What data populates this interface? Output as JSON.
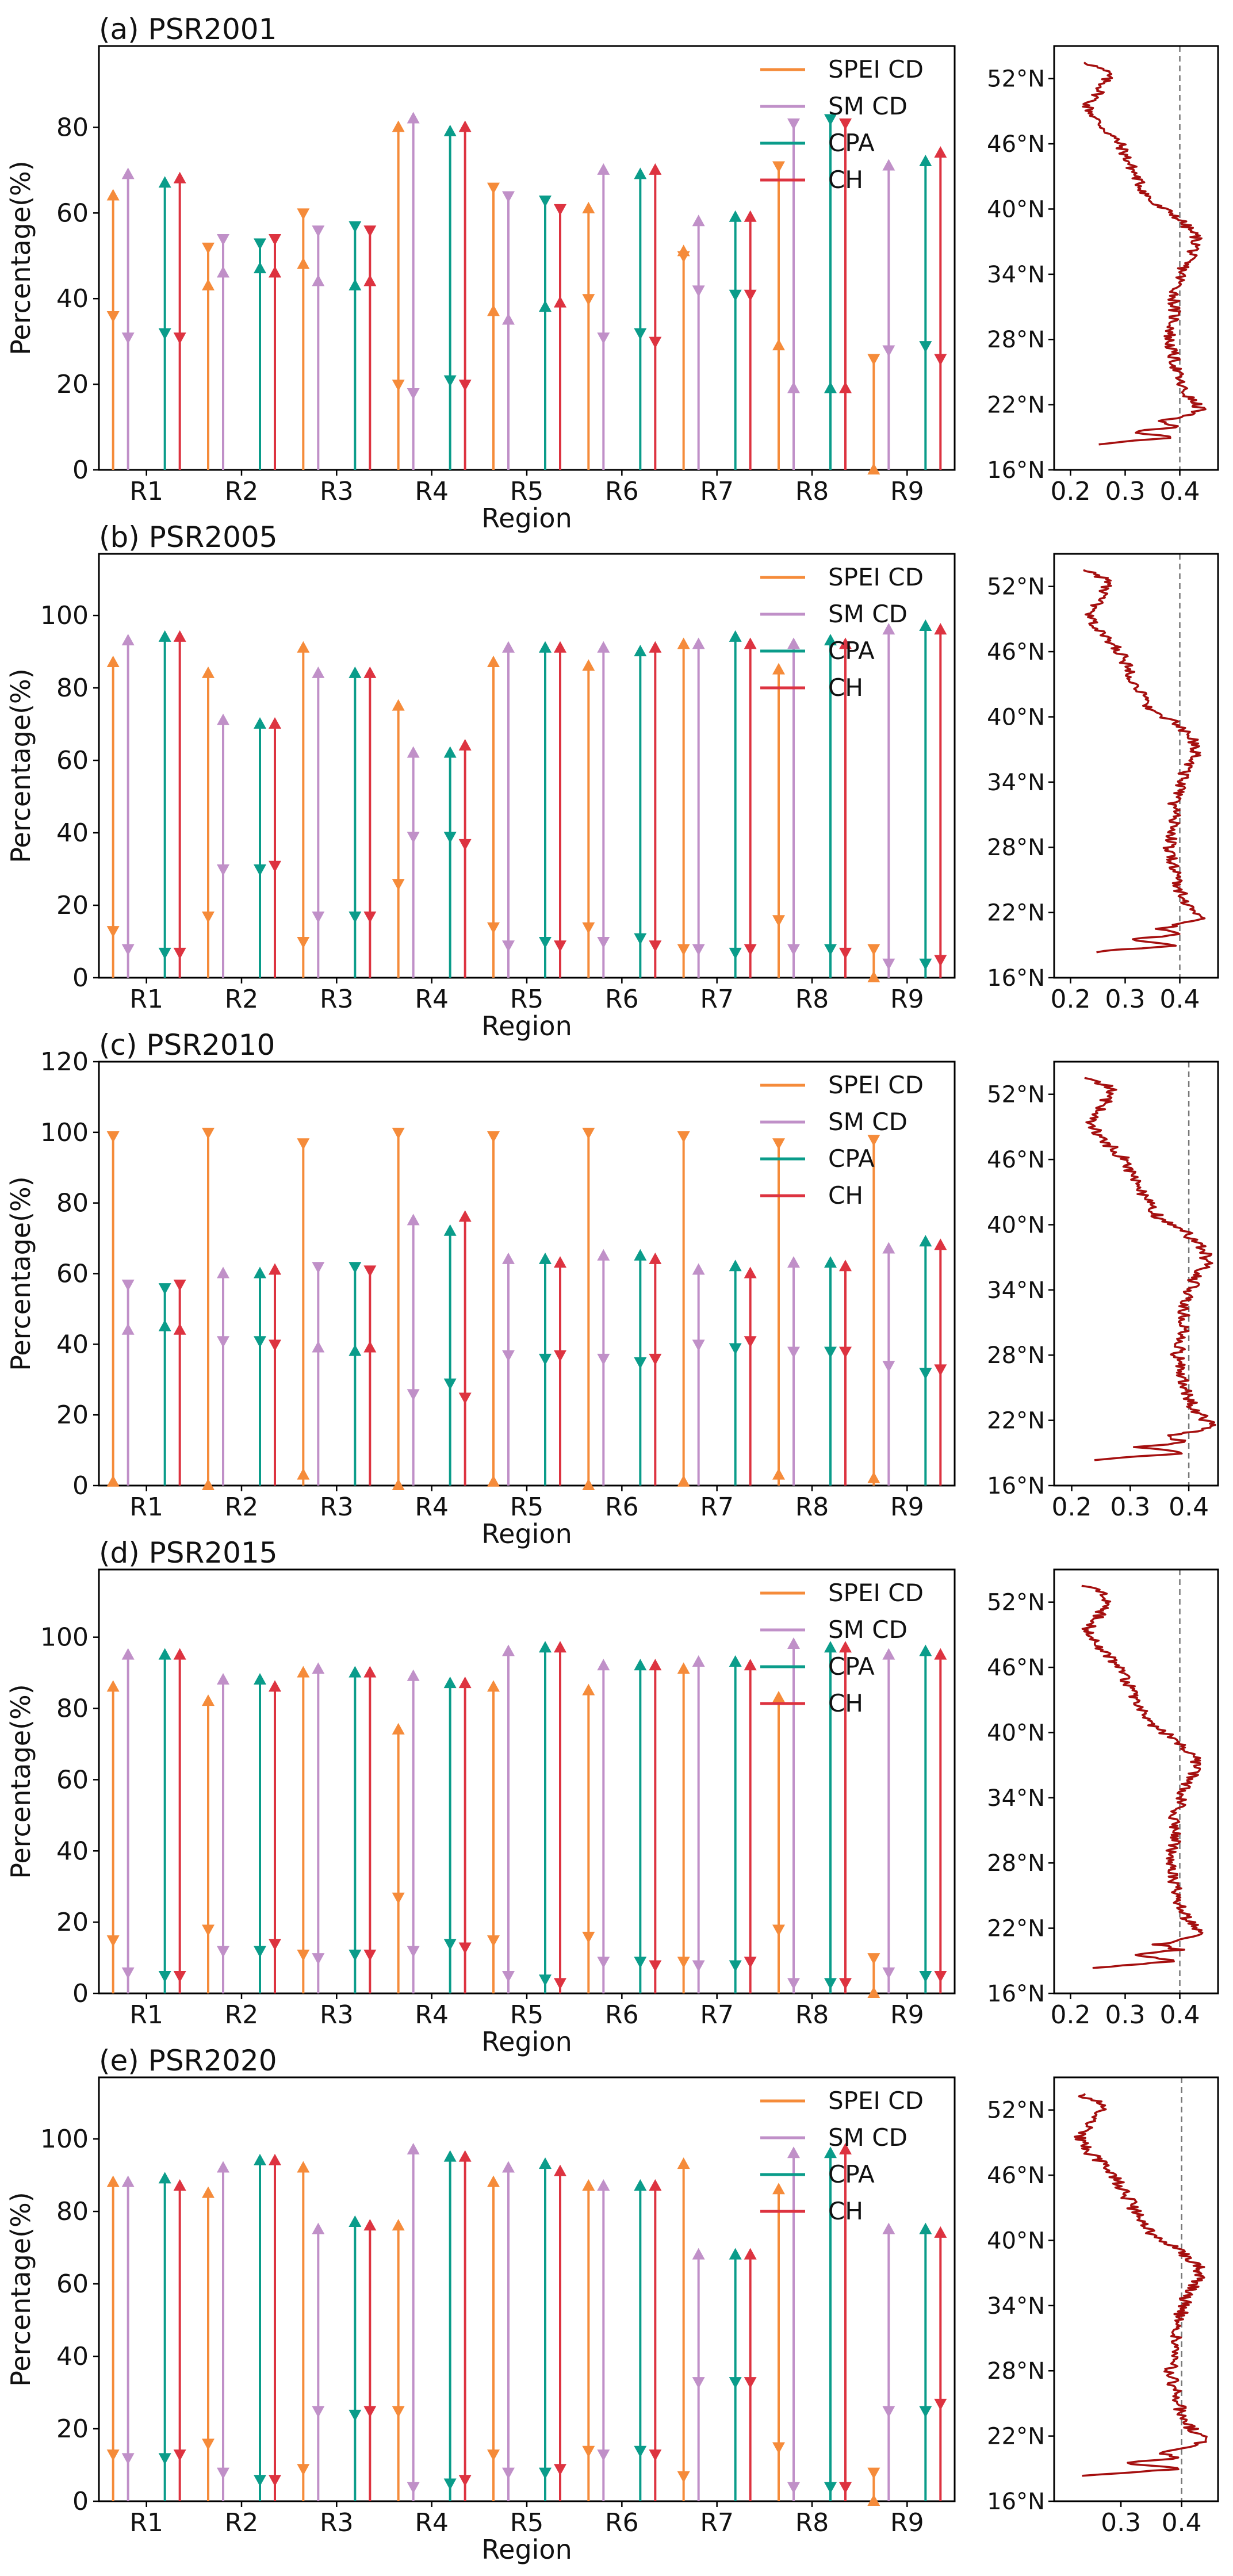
{
  "colors": {
    "SPEI CD": "#f58b3a",
    "SM CD": "#c090c8",
    "CPA": "#0a9c8a",
    "CH": "#dd3340",
    "profile": "#a50f0f",
    "ref": "#777777"
  },
  "chart_data": [
    {
      "type": "bar",
      "title": "(a) PSR2001",
      "xlabel": "Region",
      "ylabel": "Percentage(%)",
      "ylim": [
        0,
        99
      ],
      "yticks": [
        0,
        20,
        40,
        60,
        80
      ],
      "categories": [
        "R1",
        "R2",
        "R3",
        "R4",
        "R5",
        "R6",
        "R7",
        "R8",
        "R9"
      ],
      "legend": [
        "SPEI CD",
        "SM CD",
        "CPA",
        "CH"
      ],
      "series": [
        {
          "name": "SPEI CD",
          "up": [
            64,
            43,
            48,
            80,
            37,
            61,
            51,
            29,
            0
          ],
          "down": [
            36,
            52,
            60,
            20,
            66,
            40,
            50,
            71,
            26
          ]
        },
        {
          "name": "SM CD",
          "up": [
            69,
            46,
            44,
            82,
            35,
            70,
            58,
            19,
            71
          ],
          "down": [
            31,
            54,
            56,
            18,
            64,
            31,
            42,
            81,
            28
          ]
        },
        {
          "name": "CPA",
          "up": [
            67,
            47,
            43,
            79,
            38,
            69,
            59,
            19,
            72
          ],
          "down": [
            32,
            53,
            57,
            21,
            63,
            32,
            41,
            82,
            29
          ]
        },
        {
          "name": "CH",
          "up": [
            68,
            46,
            44,
            80,
            39,
            70,
            59,
            19,
            74
          ],
          "down": [
            31,
            54,
            56,
            20,
            61,
            30,
            41,
            81,
            26
          ]
        }
      ],
      "profile": {
        "lat_ticks": [
          "52°N",
          "46°N",
          "40°N",
          "34°N",
          "28°N",
          "22°N",
          "16°N"
        ],
        "x_ticks": [
          "0.2",
          "0.3",
          "0.4"
        ],
        "xlim": [
          0.17,
          0.47
        ],
        "ylim": [
          16,
          55
        ],
        "ref_line": 0.4
      }
    },
    {
      "type": "bar",
      "title": "(b) PSR2005",
      "xlabel": "Region",
      "ylabel": "Percentage(%)",
      "ylim": [
        0,
        117
      ],
      "yticks": [
        0,
        20,
        40,
        60,
        80,
        100
      ],
      "categories": [
        "R1",
        "R2",
        "R3",
        "R4",
        "R5",
        "R6",
        "R7",
        "R8",
        "R9"
      ],
      "legend": [
        "SPEI CD",
        "SM CD",
        "CPA",
        "CH"
      ],
      "series": [
        {
          "name": "SPEI CD",
          "up": [
            87,
            84,
            91,
            75,
            87,
            86,
            92,
            85,
            0
          ],
          "down": [
            13,
            17,
            10,
            26,
            14,
            14,
            8,
            16,
            8
          ]
        },
        {
          "name": "SM CD",
          "up": [
            93,
            71,
            84,
            62,
            91,
            91,
            92,
            92,
            96
          ],
          "down": [
            8,
            30,
            17,
            39,
            9,
            10,
            8,
            8,
            4
          ]
        },
        {
          "name": "CPA",
          "up": [
            94,
            70,
            84,
            62,
            91,
            90,
            94,
            93,
            97
          ],
          "down": [
            7,
            30,
            17,
            39,
            10,
            11,
            7,
            8,
            4
          ]
        },
        {
          "name": "CH",
          "up": [
            94,
            70,
            84,
            64,
            91,
            91,
            92,
            92,
            96
          ],
          "down": [
            7,
            31,
            17,
            37,
            9,
            9,
            8,
            7,
            5
          ]
        }
      ],
      "profile": {
        "lat_ticks": [
          "52°N",
          "46°N",
          "40°N",
          "34°N",
          "28°N",
          "22°N",
          "16°N"
        ],
        "x_ticks": [
          "0.2",
          "0.3",
          "0.4"
        ],
        "xlim": [
          0.17,
          0.47
        ],
        "ylim": [
          16,
          55
        ],
        "ref_line": 0.4
      }
    },
    {
      "type": "bar",
      "title": "(c) PSR2010",
      "xlabel": "Region",
      "ylabel": "Percentage(%)",
      "ylim": [
        0,
        120
      ],
      "yticks": [
        0,
        20,
        40,
        60,
        80,
        100,
        120
      ],
      "categories": [
        "R1",
        "R2",
        "R3",
        "R4",
        "R5",
        "R6",
        "R7",
        "R8",
        "R9"
      ],
      "legend": [
        "SPEI CD",
        "SM CD",
        "CPA",
        "CH"
      ],
      "series": [
        {
          "name": "SPEI CD",
          "up": [
            1,
            0,
            3,
            0,
            1,
            0,
            1,
            3,
            2
          ],
          "down": [
            99,
            100,
            97,
            100,
            99,
            100,
            99,
            97,
            98
          ]
        },
        {
          "name": "SM CD",
          "up": [
            44,
            60,
            39,
            75,
            64,
            65,
            61,
            63,
            67
          ],
          "down": [
            57,
            41,
            62,
            26,
            37,
            36,
            40,
            38,
            34
          ]
        },
        {
          "name": "CPA",
          "up": [
            45,
            60,
            38,
            72,
            64,
            65,
            62,
            63,
            69
          ],
          "down": [
            56,
            41,
            62,
            29,
            36,
            35,
            39,
            38,
            32
          ]
        },
        {
          "name": "CH",
          "up": [
            44,
            61,
            39,
            76,
            63,
            64,
            60,
            62,
            68
          ],
          "down": [
            57,
            40,
            61,
            25,
            37,
            36,
            41,
            38,
            33
          ]
        }
      ],
      "profile": {
        "lat_ticks": [
          "52°N",
          "46°N",
          "40°N",
          "34°N",
          "28°N",
          "22°N",
          "16°N"
        ],
        "x_ticks": [
          "0.2",
          "0.3",
          "0.4"
        ],
        "xlim": [
          0.17,
          0.45
        ],
        "ylim": [
          16,
          55
        ],
        "ref_line": 0.4
      }
    },
    {
      "type": "bar",
      "title": "(d) PSR2015",
      "xlabel": "Region",
      "ylabel": "Percentage(%)",
      "ylim": [
        0,
        119
      ],
      "yticks": [
        0,
        20,
        40,
        60,
        80,
        100
      ],
      "categories": [
        "R1",
        "R2",
        "R3",
        "R4",
        "R5",
        "R6",
        "R7",
        "R8",
        "R9"
      ],
      "legend": [
        "SPEI CD",
        "SM CD",
        "CPA",
        "CH"
      ],
      "series": [
        {
          "name": "SPEI CD",
          "up": [
            86,
            82,
            90,
            74,
            86,
            85,
            91,
            83,
            0
          ],
          "down": [
            15,
            18,
            11,
            27,
            15,
            16,
            9,
            18,
            10
          ]
        },
        {
          "name": "SM CD",
          "up": [
            95,
            88,
            91,
            89,
            96,
            92,
            93,
            98,
            95
          ],
          "down": [
            6,
            12,
            10,
            12,
            5,
            9,
            8,
            3,
            6
          ]
        },
        {
          "name": "CPA",
          "up": [
            95,
            88,
            90,
            87,
            97,
            92,
            93,
            97,
            96
          ],
          "down": [
            5,
            12,
            11,
            14,
            4,
            9,
            8,
            3,
            5
          ]
        },
        {
          "name": "CH",
          "up": [
            95,
            86,
            90,
            87,
            97,
            92,
            92,
            97,
            95
          ],
          "down": [
            5,
            14,
            11,
            13,
            3,
            8,
            9,
            3,
            5
          ]
        }
      ],
      "profile": {
        "lat_ticks": [
          "52°N",
          "46°N",
          "40°N",
          "34°N",
          "28°N",
          "22°N",
          "16°N"
        ],
        "x_ticks": [
          "0.2",
          "0.3",
          "0.4"
        ],
        "xlim": [
          0.17,
          0.47
        ],
        "ylim": [
          16,
          55
        ],
        "ref_line": 0.4
      }
    },
    {
      "type": "bar",
      "title": "(e) PSR2020",
      "xlabel": "Region",
      "ylabel": "Percentage(%)",
      "ylim": [
        0,
        117
      ],
      "yticks": [
        0,
        20,
        40,
        60,
        80,
        100
      ],
      "categories": [
        "R1",
        "R2",
        "R3",
        "R4",
        "R5",
        "R6",
        "R7",
        "R8",
        "R9"
      ],
      "legend": [
        "SPEI CD",
        "SM CD",
        "CPA",
        "CH"
      ],
      "series": [
        {
          "name": "SPEI CD",
          "up": [
            88,
            85,
            92,
            76,
            88,
            87,
            93,
            86,
            0
          ],
          "down": [
            13,
            16,
            9,
            25,
            13,
            14,
            7,
            15,
            8
          ]
        },
        {
          "name": "SM CD",
          "up": [
            88,
            92,
            75,
            97,
            92,
            87,
            68,
            96,
            75
          ],
          "down": [
            12,
            8,
            25,
            4,
            8,
            13,
            33,
            4,
            25
          ]
        },
        {
          "name": "CPA",
          "up": [
            89,
            94,
            77,
            95,
            93,
            87,
            68,
            96,
            75
          ],
          "down": [
            12,
            6,
            24,
            5,
            8,
            14,
            33,
            4,
            25
          ]
        },
        {
          "name": "CH",
          "up": [
            87,
            94,
            76,
            95,
            91,
            87,
            68,
            97,
            74
          ],
          "down": [
            13,
            6,
            25,
            6,
            9,
            13,
            33,
            4,
            27
          ]
        }
      ],
      "profile": {
        "lat_ticks": [
          "52°N",
          "46°N",
          "40°N",
          "34°N",
          "28°N",
          "22°N",
          "16°N"
        ],
        "x_ticks": [
          "0.3",
          "0.4"
        ],
        "xlim": [
          0.19,
          0.46
        ],
        "ylim": [
          16,
          55
        ],
        "ref_line": 0.4
      }
    }
  ]
}
